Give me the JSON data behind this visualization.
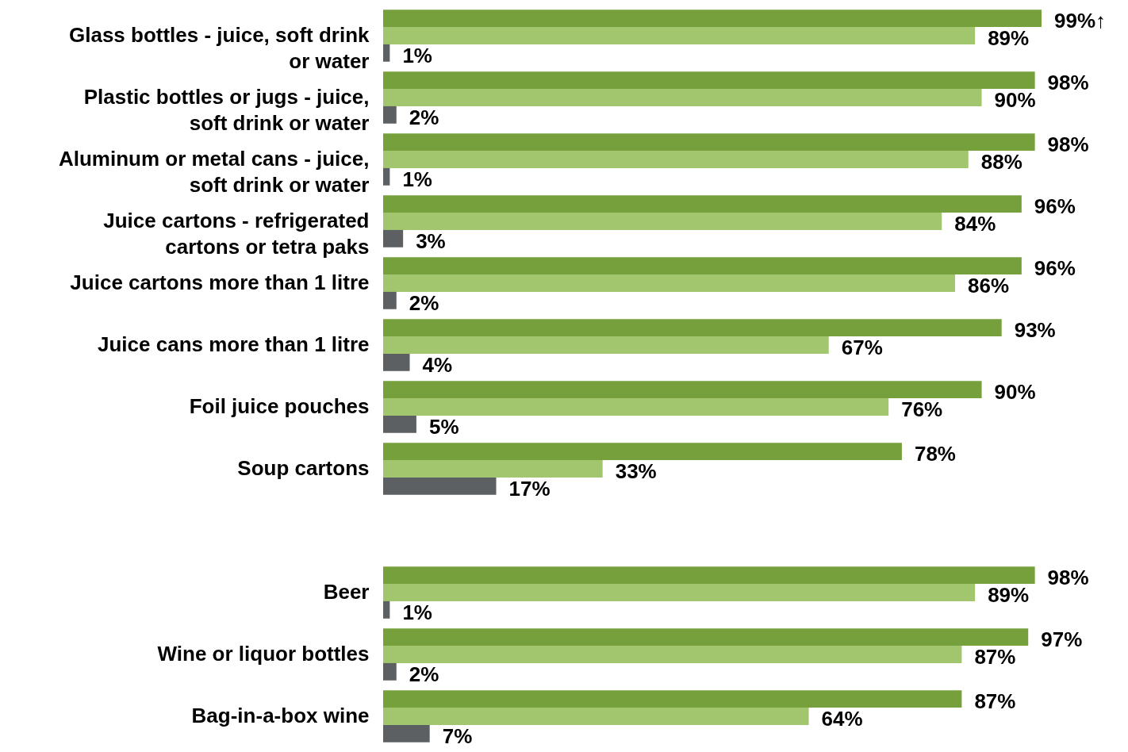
{
  "chart_data": {
    "type": "bar",
    "orientation": "horizontal",
    "categories": [
      "Glass bottles - juice, soft drink or water",
      "Plastic bottles or jugs - juice, soft drink or water",
      "Aluminum or metal cans - juice, soft drink or water",
      "Juice cartons - refrigerated cartons or tetra paks",
      "Juice cartons more than 1 litre",
      "Juice cans more than 1 litre",
      "Foil juice pouches",
      "Soup cartons",
      null,
      "Beer",
      "Wine or liquor bottles",
      "Bag-in-a-box wine"
    ],
    "series": [
      {
        "color": "#76a03c",
        "values": [
          99,
          98,
          98,
          96,
          96,
          93,
          90,
          78,
          null,
          98,
          97,
          87
        ],
        "value_labels": [
          "99%↑",
          "98%",
          "98%",
          "96%",
          "96%",
          "93%",
          "90%",
          "78%",
          null,
          "98%",
          "97%",
          "87%"
        ]
      },
      {
        "color": "#a2c66e",
        "values": [
          89,
          90,
          88,
          84,
          86,
          67,
          76,
          33,
          null,
          89,
          87,
          64
        ],
        "value_labels": [
          "89%",
          "90%",
          "88%",
          "84%",
          "86%",
          "67%",
          "76%",
          "33%",
          null,
          "89%",
          "87%",
          "64%"
        ]
      },
      {
        "color": "#5d6063",
        "values": [
          1,
          2,
          1,
          3,
          2,
          4,
          5,
          17,
          null,
          1,
          2,
          7
        ],
        "value_labels": [
          "1%",
          "2%",
          "1%",
          "3%",
          "2%",
          "4%",
          "5%",
          "17%",
          null,
          "1%",
          "2%",
          "7%"
        ]
      }
    ]
  }
}
